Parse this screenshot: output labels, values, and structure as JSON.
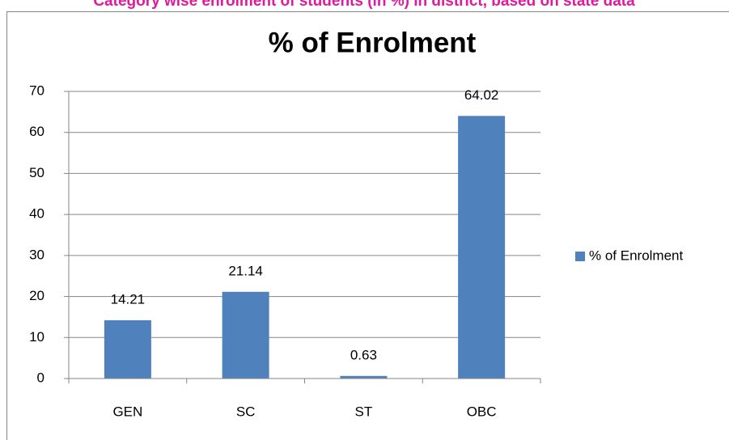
{
  "page_heading": "Category wise enrolment of students (in %) in district, based on state data",
  "chart_data": {
    "type": "bar",
    "title": "% of Enrolment",
    "categories": [
      "GEN",
      "SC",
      "ST",
      "OBC"
    ],
    "series": [
      {
        "name": "% of Enrolment",
        "color": "#4f81bd",
        "values": [
          14.21,
          21.14,
          0.63,
          64.02
        ]
      }
    ],
    "ylim": [
      0,
      70
    ],
    "yticks": [
      0,
      10,
      20,
      30,
      40,
      50,
      60,
      70
    ],
    "grid": true,
    "legend": "right",
    "data_labels": true
  }
}
